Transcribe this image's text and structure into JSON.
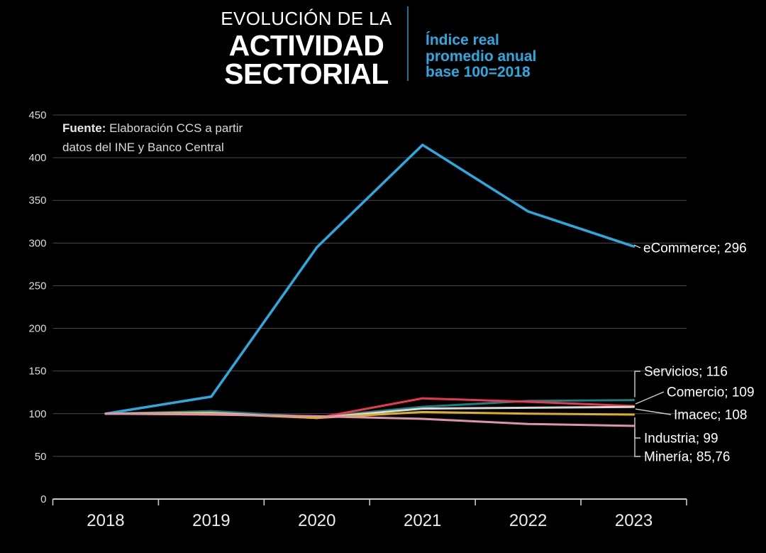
{
  "header": {
    "title_top": "EVOLUCIÓN DE LA",
    "title_main1": "ACTIVIDAD",
    "title_main2": "SECTORIAL",
    "subtitle_lines": [
      "Índice real",
      "promedio anual",
      "base 100=2018"
    ],
    "subtitle_color": "#29abe2",
    "divider_color": "#2d6e94"
  },
  "source": {
    "label": "Fuente:",
    "line1": " Elaboración CCS a partir",
    "line2": "datos del INE y Banco Central"
  },
  "chart_data": {
    "type": "line",
    "title": "Evolución de la actividad sectorial",
    "subtitle": "Índice real promedio anual base 100=2018",
    "categories": [
      "2018",
      "2019",
      "2020",
      "2021",
      "2022",
      "2023"
    ],
    "series": [
      {
        "name": "eCommerce",
        "color": "#29abe2",
        "values": [
          100,
          120,
          295,
          415,
          337,
          296
        ],
        "end_label": "eCommerce; 296"
      },
      {
        "name": "Servicios",
        "color": "#1f7e7e",
        "values": [
          100,
          103,
          96,
          108,
          115,
          116
        ],
        "end_label": "Servicios; 116"
      },
      {
        "name": "Comercio",
        "color": "#e83a4e",
        "values": [
          100,
          101,
          95,
          118,
          114,
          109
        ],
        "end_label": "Comercio; 109"
      },
      {
        "name": "Imacec",
        "color": "#d9d9d9",
        "values": [
          100,
          101,
          95,
          106,
          107,
          108
        ],
        "end_label": "Imacec; 108"
      },
      {
        "name": "Industria",
        "color": "#e0ae24",
        "values": [
          100,
          100,
          95,
          102,
          100,
          99
        ],
        "end_label": "Industria; 99"
      },
      {
        "name": "Minería",
        "color": "#df93a9",
        "values": [
          100,
          99,
          97,
          94,
          88,
          85.76
        ],
        "end_label": "Minería; 85,76"
      }
    ],
    "xlabel": "",
    "ylabel": "",
    "ylim": [
      0,
      450
    ],
    "ytick_step": 50,
    "grid": true,
    "legend_position": "end-labels",
    "colors": {
      "background": "#000000",
      "gridline": "#4a4a4a",
      "axis": "#c9c9c9",
      "leader": "#cfcfcf",
      "tick_text": "#dcdcdc"
    }
  }
}
